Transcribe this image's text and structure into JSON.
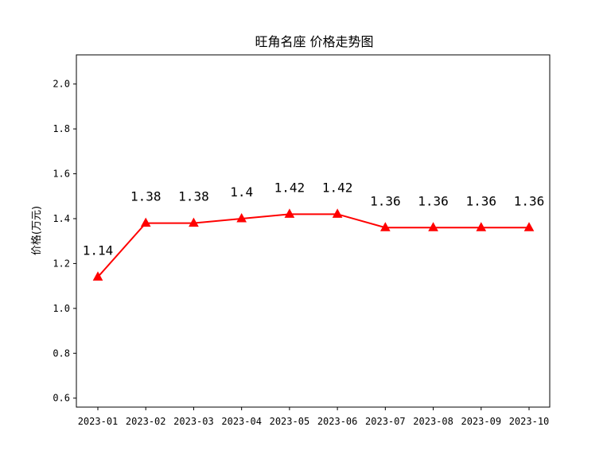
{
  "chart_data": {
    "type": "line",
    "title": "旺角名座 价格走势图",
    "xlabel": "",
    "ylabel": "价格(万元)",
    "categories": [
      "2023-01",
      "2023-02",
      "2023-03",
      "2023-04",
      "2023-05",
      "2023-06",
      "2023-07",
      "2023-08",
      "2023-09",
      "2023-10"
    ],
    "series": [
      {
        "values": [
          1.14,
          1.38,
          1.38,
          1.4,
          1.42,
          1.42,
          1.36,
          1.36,
          1.36,
          1.36
        ],
        "labels": [
          "1.14",
          "1.38",
          "1.38",
          "1.4",
          "1.42",
          "1.42",
          "1.36",
          "1.36",
          "1.36",
          "1.36"
        ],
        "color": "#ff0000",
        "marker": "triangle-up"
      }
    ],
    "ylim": [
      0.56,
      2.13
    ],
    "yticks": [
      0.6,
      0.8,
      1.0,
      1.2,
      1.4,
      1.6,
      1.8,
      2.0
    ],
    "ytick_labels": [
      "0.6",
      "0.8",
      "1.0",
      "1.2",
      "1.4",
      "1.6",
      "1.8",
      "2.0"
    ],
    "grid": false,
    "legend": "none"
  }
}
